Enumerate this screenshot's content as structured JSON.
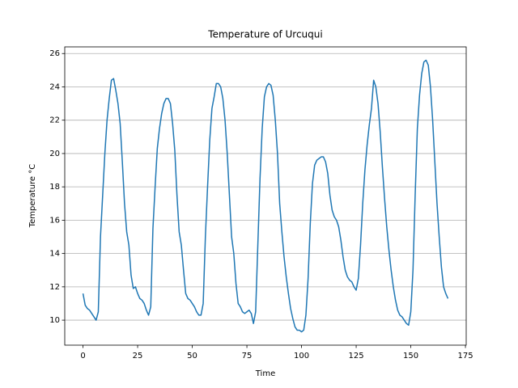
{
  "chart_data": {
    "type": "line",
    "title": "Temperature of Urcuqui",
    "x_label": "Time",
    "y_label": "Temperature °C",
    "x": [
      0,
      1,
      2,
      3,
      4,
      5,
      6,
      7,
      8,
      9,
      10,
      11,
      12,
      13,
      14,
      15,
      16,
      17,
      18,
      19,
      20,
      21,
      22,
      23,
      24,
      25,
      26,
      27,
      28,
      29,
      30,
      31,
      32,
      33,
      34,
      35,
      36,
      37,
      38,
      39,
      40,
      41,
      42,
      43,
      44,
      45,
      46,
      47,
      48,
      49,
      50,
      51,
      52,
      53,
      54,
      55,
      56,
      57,
      58,
      59,
      60,
      61,
      62,
      63,
      64,
      65,
      66,
      67,
      68,
      69,
      70,
      71,
      72,
      73,
      74,
      75,
      76,
      77,
      78,
      79,
      80,
      81,
      82,
      83,
      84,
      85,
      86,
      87,
      88,
      89,
      90,
      91,
      92,
      93,
      94,
      95,
      96,
      97,
      98,
      99,
      100,
      101,
      102,
      103,
      104,
      105,
      106,
      107,
      108,
      109,
      110,
      111,
      112,
      113,
      114,
      115,
      116,
      117,
      118,
      119,
      120,
      121,
      122,
      123,
      124,
      125,
      126,
      127,
      128,
      129,
      130,
      131,
      132,
      133,
      134,
      135,
      136,
      137,
      138,
      139,
      140,
      141,
      142,
      143,
      144,
      145,
      146,
      147,
      148,
      149,
      150,
      151,
      152,
      153,
      154,
      155,
      156,
      157,
      158,
      159,
      160,
      161,
      162,
      163,
      164,
      165,
      166,
      167
    ],
    "series": [
      {
        "name": "Temperature",
        "color": "#1f77b4",
        "values": [
          11.6,
          10.9,
          10.7,
          10.6,
          10.4,
          10.2,
          10.0,
          10.5,
          15.0,
          17.5,
          20.0,
          22.0,
          23.3,
          24.4,
          24.5,
          23.8,
          23.0,
          21.8,
          19.5,
          17.0,
          15.3,
          14.5,
          12.7,
          11.9,
          12.0,
          11.6,
          11.3,
          11.2,
          11.0,
          10.6,
          10.3,
          10.8,
          15.5,
          18.0,
          20.3,
          21.5,
          22.4,
          23.0,
          23.3,
          23.3,
          23.0,
          21.8,
          20.2,
          17.5,
          15.3,
          14.5,
          13.0,
          11.6,
          11.3,
          11.2,
          11.0,
          10.8,
          10.5,
          10.3,
          10.3,
          11.0,
          15.0,
          18.0,
          20.8,
          22.7,
          23.4,
          24.2,
          24.2,
          24.0,
          23.3,
          22.0,
          20.0,
          17.5,
          15.0,
          14.0,
          12.2,
          11.0,
          10.8,
          10.5,
          10.4,
          10.5,
          10.6,
          10.4,
          9.8,
          10.5,
          14.5,
          18.5,
          21.5,
          23.4,
          24.0,
          24.2,
          24.1,
          23.5,
          22.0,
          20.0,
          17.0,
          15.3,
          13.8,
          12.6,
          11.6,
          10.7,
          10.1,
          9.6,
          9.4,
          9.4,
          9.3,
          9.4,
          10.3,
          12.5,
          15.8,
          18.2,
          19.3,
          19.6,
          19.7,
          19.8,
          19.8,
          19.5,
          18.8,
          17.5,
          16.6,
          16.2,
          16.0,
          15.6,
          14.8,
          13.8,
          13.0,
          12.6,
          12.4,
          12.3,
          12.0,
          11.8,
          12.5,
          14.5,
          17.0,
          19.0,
          20.5,
          21.7,
          22.7,
          24.4,
          24.0,
          23.0,
          21.3,
          19.2,
          17.3,
          15.6,
          14.2,
          13.0,
          12.0,
          11.2,
          10.6,
          10.3,
          10.2,
          10.0,
          9.8,
          9.7,
          10.5,
          13.0,
          17.5,
          21.5,
          23.5,
          24.8,
          25.5,
          25.6,
          25.3,
          24.0,
          22.0,
          19.5,
          17.0,
          15.0,
          13.2,
          12.0,
          11.6,
          11.3
        ]
      }
    ],
    "xlim": [
      -8.35,
      175.35
    ],
    "ylim": [
      8.5,
      26.4
    ],
    "xticks": [
      0,
      25,
      50,
      75,
      100,
      125,
      150,
      175
    ],
    "yticks": [
      10,
      12,
      14,
      16,
      18,
      20,
      22,
      24,
      26
    ],
    "grid": "y"
  }
}
